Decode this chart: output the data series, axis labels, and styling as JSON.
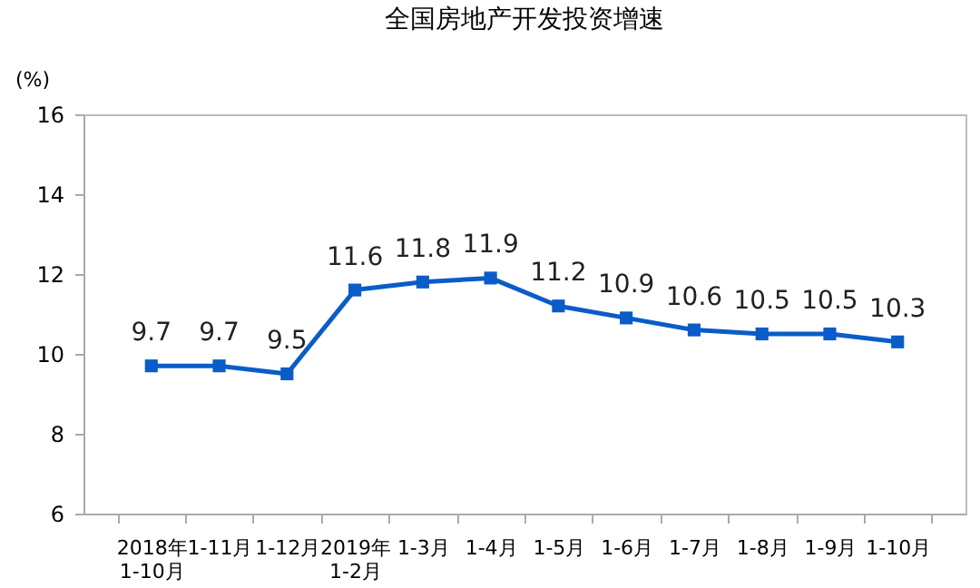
{
  "chart_data": {
    "type": "line",
    "title": "全国房地产开发投资增速",
    "ylabel": "(%)",
    "categories": [
      "2018年\n1-10月",
      "1-11月",
      "1-12月",
      "2019年\n1-2月",
      "1-3月",
      "1-4月",
      "1-5月",
      "1-6月",
      "1-7月",
      "1-8月",
      "1-9月",
      "1-10月"
    ],
    "series": [
      {
        "color": "#0a5cc8",
        "values": [
          9.7,
          9.7,
          9.5,
          11.6,
          11.8,
          11.9,
          11.2,
          10.9,
          10.6,
          10.5,
          10.5,
          10.3
        ]
      }
    ],
    "ylim": [
      6,
      16
    ],
    "yticks": [
      6,
      8,
      10,
      12,
      14,
      16
    ],
    "grid": false,
    "data_labels": true,
    "marker": "square",
    "line_style": "solid",
    "legend": false
  }
}
